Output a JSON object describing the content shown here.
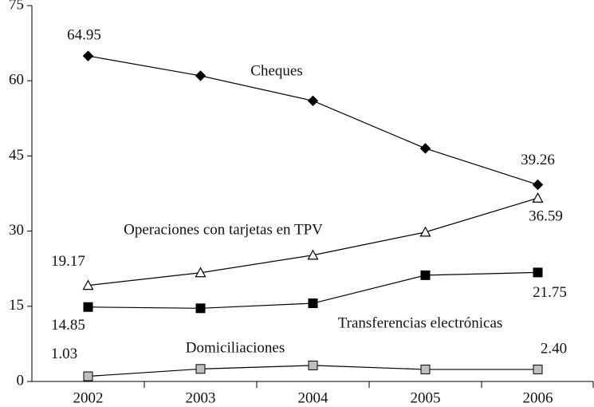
{
  "chart_data": {
    "type": "line",
    "categories": [
      "2002",
      "2003",
      "2004",
      "2005",
      "2006"
    ],
    "ylim": [
      0,
      75
    ],
    "yticks": [
      0,
      15,
      30,
      45,
      60,
      75
    ],
    "series": [
      {
        "name": "Cheques",
        "color": "#000000",
        "marker": "diamond",
        "values": [
          64.95,
          61,
          56,
          46.5,
          39.26
        ],
        "value_labels": [
          "64.95",
          null,
          null,
          null,
          "39.26"
        ]
      },
      {
        "name": "Operaciones con tarjetas en TPV",
        "color": "#ffffff",
        "marker": "triangle",
        "values": [
          19.17,
          21.7,
          25.2,
          29.8,
          36.59
        ],
        "value_labels": [
          "19.17",
          null,
          null,
          null,
          "36.59"
        ]
      },
      {
        "name": "Transferencias electrónicas",
        "color": "#000000",
        "marker": "square",
        "values": [
          14.85,
          14.6,
          15.6,
          21.2,
          21.75
        ],
        "value_labels": [
          "14.85",
          null,
          null,
          null,
          "21.75"
        ]
      },
      {
        "name": "Domiciliaciones",
        "color": "#bfbfbf",
        "marker": "square",
        "values": [
          1.03,
          2.5,
          3.2,
          2.4,
          2.4
        ],
        "value_labels": [
          "1.03",
          null,
          null,
          null,
          "2.40"
        ]
      }
    ]
  }
}
